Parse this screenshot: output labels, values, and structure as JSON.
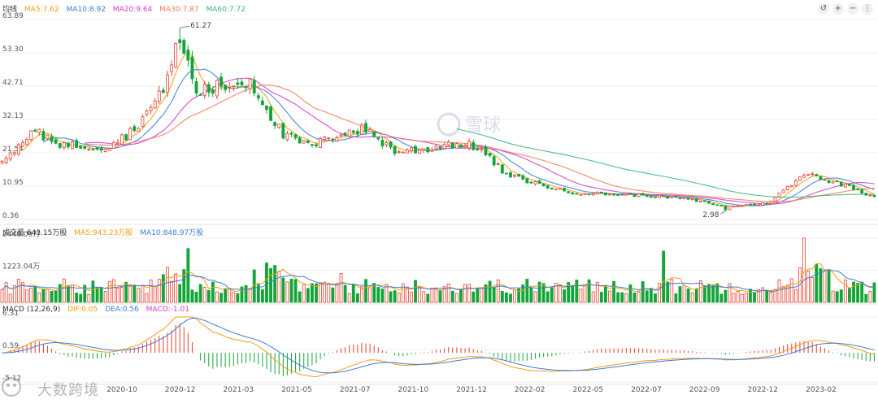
{
  "legend_main": {
    "title": "均线",
    "items": [
      {
        "text": "MA5:7.62",
        "color": "#f39c12"
      },
      {
        "text": "MA10:8.92",
        "color": "#3b7dd8"
      },
      {
        "text": "MA20:9.64",
        "color": "#d63cc8"
      },
      {
        "text": "MA30:7.87",
        "color": "#f07c5a"
      },
      {
        "text": "MA60:7.72",
        "color": "#3cb878"
      }
    ]
  },
  "legend_volume": {
    "title": "成交量 643.15万股",
    "items": [
      {
        "text": "MA5:943.23万股",
        "color": "#f39c12"
      },
      {
        "text": "MA10:848.97万股",
        "color": "#3b7dd8"
      }
    ]
  },
  "legend_macd": {
    "title": "MACD (12,26,9)",
    "items": [
      {
        "text": "DIF:0.05",
        "color": "#f39c12"
      },
      {
        "text": "DEA:0.56",
        "color": "#3b7dd8"
      },
      {
        "text": "MACD:-1.01",
        "color": "#d63cc8"
      }
    ]
  },
  "toolbar": {
    "undo_icon": "undo-icon",
    "plus_icon": "plus-icon",
    "minus_icon": "minus-icon",
    "more_icon": "more-icon"
  },
  "watermark": {
    "brand": "雪球",
    "text": "大数跨境"
  },
  "colors": {
    "up": "#e8412f",
    "down": "#13a538",
    "grid": "#efefef",
    "axis_text": "#555555"
  },
  "chart_data": {
    "type": "candlestick",
    "price_axis": {
      "ticks": [
        "63.89",
        "53.30",
        "42.71",
        "32.13",
        "21.54",
        "10.95",
        "0.36"
      ],
      "ylim": [
        0.36,
        63.89
      ]
    },
    "x_labels": [
      "2020-10",
      "2020-12",
      "2021-03",
      "2021-05",
      "2021-07",
      "2021-10",
      "2021-12",
      "2022-02",
      "2022-05",
      "2022-07",
      "2022-09",
      "2022-12",
      "2023-02"
    ],
    "annotations": [
      {
        "text": "61.27",
        "type": "max"
      },
      {
        "text": "2.98",
        "type": "min"
      }
    ],
    "ohlc_anchors": [
      [
        0,
        18.0
      ],
      [
        8,
        28.5
      ],
      [
        15,
        24.0
      ],
      [
        25,
        23.5
      ],
      [
        31,
        28.0
      ],
      [
        38,
        39.0
      ],
      [
        43,
        58.0
      ],
      [
        47,
        41.0
      ],
      [
        55,
        43.0
      ],
      [
        60,
        44.5
      ],
      [
        63,
        38.0
      ],
      [
        68,
        27.0
      ],
      [
        75,
        23.5
      ],
      [
        82,
        28.0
      ],
      [
        88,
        29.0
      ],
      [
        95,
        22.0
      ],
      [
        102,
        22.5
      ],
      [
        108,
        24.5
      ],
      [
        115,
        23.5
      ],
      [
        122,
        14.5
      ],
      [
        130,
        11.5
      ],
      [
        137,
        9.0
      ],
      [
        145,
        8.5
      ],
      [
        155,
        8.0
      ],
      [
        165,
        7.0
      ],
      [
        175,
        4.5
      ],
      [
        185,
        5.5
      ],
      [
        195,
        15.5
      ],
      [
        200,
        12.5
      ],
      [
        205,
        11.0
      ],
      [
        210,
        8.0
      ]
    ],
    "volume_axis": {
      "ticks": [
        "2446.09万",
        "1223.04万"
      ],
      "max": 2446.09
    },
    "macd_axis": {
      "ticks": [
        "6.31",
        "0.59",
        "-5.12"
      ],
      "ylim": [
        -5.12,
        6.31
      ]
    },
    "ma_series": [
      {
        "name": "MA5",
        "window": 5,
        "color": "#f39c12"
      },
      {
        "name": "MA10",
        "window": 10,
        "color": "#3b7dd8"
      },
      {
        "name": "MA20",
        "window": 20,
        "color": "#d63cc8"
      },
      {
        "name": "MA30",
        "window": 30,
        "color": "#f07c5a"
      },
      {
        "name": "MA60",
        "window": 60,
        "color": "#3cb878"
      }
    ]
  }
}
